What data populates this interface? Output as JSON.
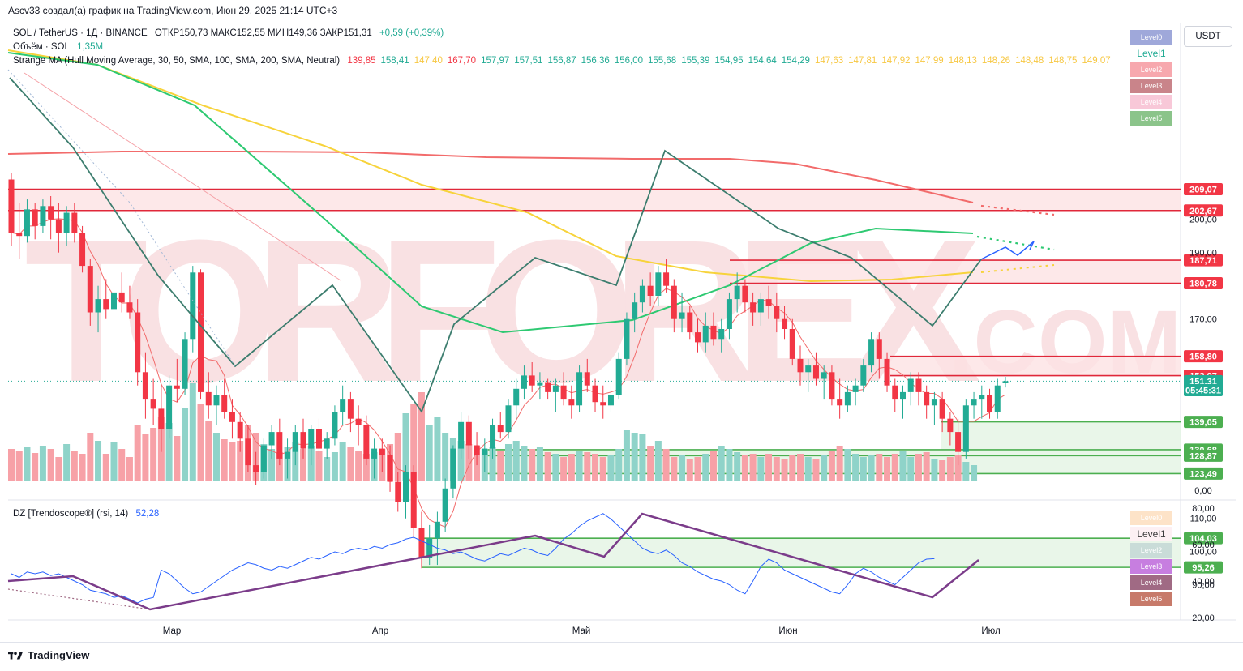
{
  "caption": "Ascv33 создал(а) график на TradingView.com, Июн 29, 2025 21:14 UTC+3",
  "legend": {
    "symbol": "SOL / TetherUS · 1Д · BINANCE",
    "ohlc": "ОТКР150,73  МАКС152,55  МИН149,36  ЗАКР151,31",
    "change": "+0,59 (+0,39%)",
    "volume_label": "Объём · SOL",
    "volume_value": "1,35M",
    "ma_label": "Strange MA (Hull Moving Average, 30, 50, SMA, 100, SMA, 200, SMA, Neutral)",
    "ma_values": [
      {
        "v": "139,85",
        "c": "#f23645"
      },
      {
        "v": "158,41",
        "c": "#22ab94"
      },
      {
        "v": "147,40",
        "c": "#f7c844"
      },
      {
        "v": "167,70",
        "c": "#f23645"
      },
      {
        "v": "157,97",
        "c": "#22ab94"
      },
      {
        "v": "157,51",
        "c": "#22ab94"
      },
      {
        "v": "156,87",
        "c": "#22ab94"
      },
      {
        "v": "156,36",
        "c": "#22ab94"
      },
      {
        "v": "156,00",
        "c": "#22ab94"
      },
      {
        "v": "155,68",
        "c": "#22ab94"
      },
      {
        "v": "155,39",
        "c": "#22ab94"
      },
      {
        "v": "154,95",
        "c": "#22ab94"
      },
      {
        "v": "154,64",
        "c": "#22ab94"
      },
      {
        "v": "154,29",
        "c": "#22ab94"
      },
      {
        "v": "147,63",
        "c": "#f7c844"
      },
      {
        "v": "147,81",
        "c": "#f7c844"
      },
      {
        "v": "147,92",
        "c": "#f7c844"
      },
      {
        "v": "147,99",
        "c": "#f7c844"
      },
      {
        "v": "148,13",
        "c": "#f7c844"
      },
      {
        "v": "148,26",
        "c": "#f7c844"
      },
      {
        "v": "148,48",
        "c": "#f7c844"
      },
      {
        "v": "148,75",
        "c": "#f7c844"
      },
      {
        "v": "149,07",
        "c": "#f7c844"
      }
    ],
    "rsi_label": "DZ [Trendoscope®] (rsi, 14)",
    "rsi_value": "52,28"
  },
  "currency_button": "USDT",
  "levels_main": [
    {
      "label": "Level0",
      "bg": "#9fa8da",
      "fg": "#ffffff"
    },
    {
      "label": "Level1",
      "bg": "#ffffff",
      "fg": "#22ab94"
    },
    {
      "label": "Level2",
      "bg": "#f7a8ae",
      "fg": "#ffffff"
    },
    {
      "label": "Level3",
      "bg": "#c9848a",
      "fg": "#ffffff"
    },
    {
      "label": "Level4",
      "bg": "#f8c8d8",
      "fg": "#ffffff"
    },
    {
      "label": "Level5",
      "bg": "#8bc48a",
      "fg": "#ffffff"
    }
  ],
  "levels_rsi": [
    {
      "label": "Level0",
      "bg": "#fde3c8",
      "fg": "#ffffff"
    },
    {
      "label": "Level1",
      "bg": "#fdf0f3",
      "fg": "#3b3b3b"
    },
    {
      "label": "Level2",
      "bg": "#c9dcd8",
      "fg": "#ffffff"
    },
    {
      "label": "Level3",
      "bg": "#c77ee0",
      "fg": "#ffffff"
    },
    {
      "label": "Level4",
      "bg": "#a06a84",
      "fg": "#ffffff"
    },
    {
      "label": "Level5",
      "bg": "#c77a6a",
      "fg": "#ffffff"
    }
  ],
  "watermark": {
    "main": "TORFOREX",
    "suffix": ".COM"
  },
  "tradingview_label": "TradingView",
  "colors": {
    "up": "#22ab94",
    "down": "#f23645",
    "vol_up": "#8fd3c9",
    "vol_down": "#f7a1a7",
    "ma100": "#2ec972",
    "ma200": "#f26b6b",
    "ma_y": "#f7d33b",
    "hull": "#f23645",
    "zone_red": "#fde2e4",
    "zone_green": "#e3f4e3",
    "line_red": "#e0283a",
    "line_green": "#4caf50",
    "price_tag": "#22ab94"
  },
  "chart_data": {
    "type": "candlestick",
    "title": "SOL / TetherUS · 1Д · BINANCE",
    "price_axis": {
      "range": [
        0,
        215
      ],
      "ticks": [
        "200,00",
        "190,00",
        "170,00",
        "110,00",
        "100,00",
        "90,00",
        "0,00"
      ]
    },
    "time_axis": [
      "Мар",
      "Апр",
      "Май",
      "Июн",
      "Июл"
    ],
    "price_labels": [
      {
        "text": "209,07",
        "color": "#f23645",
        "value": 209.07
      },
      {
        "text": "202,67",
        "color": "#f23645",
        "value": 202.67
      },
      {
        "text": "187,71",
        "color": "#f23645",
        "value": 187.71
      },
      {
        "text": "180,78",
        "color": "#f23645",
        "value": 180.78
      },
      {
        "text": "158,80",
        "color": "#f23645",
        "value": 158.8
      },
      {
        "text": "152,97",
        "color": "#f23645",
        "value": 152.97
      },
      {
        "text": "151,31",
        "color": "#22ab94",
        "value": 151.31
      },
      {
        "text": "05:45:31",
        "color": "#22ab94",
        "value": 148.6
      },
      {
        "text": "139,05",
        "color": "#4caf50",
        "value": 139.05
      },
      {
        "text": "130,68",
        "color": "#4caf50",
        "value": 130.68
      },
      {
        "text": "128,87",
        "color": "#4caf50",
        "value": 128.87
      },
      {
        "text": "123,49",
        "color": "#4caf50",
        "value": 123.49
      },
      {
        "text": "104,03",
        "color": "#4caf50",
        "value": 104.03
      },
      {
        "text": "95,26",
        "color": "#4caf50",
        "value": 95.26
      }
    ],
    "rsi_axis": {
      "ticks": [
        "80,00",
        "60,00",
        "40,00",
        "20,00"
      ],
      "range": [
        20,
        80
      ]
    },
    "candles": [
      [
        212,
        214,
        192,
        196
      ],
      [
        196,
        205,
        188,
        195
      ],
      [
        195,
        206,
        193,
        203
      ],
      [
        203,
        205,
        194,
        198
      ],
      [
        198,
        206,
        196,
        204
      ],
      [
        204,
        207,
        194,
        200
      ],
      [
        200,
        205,
        190,
        196
      ],
      [
        196,
        204,
        192,
        202
      ],
      [
        202,
        205,
        193,
        196
      ],
      [
        196,
        198,
        184,
        186
      ],
      [
        186,
        188,
        168,
        172
      ],
      [
        172,
        180,
        166,
        176
      ],
      [
        176,
        182,
        170,
        173
      ],
      [
        173,
        180,
        168,
        178
      ],
      [
        178,
        184,
        172,
        175
      ],
      [
        175,
        180,
        170,
        172
      ],
      [
        172,
        176,
        150,
        154
      ],
      [
        154,
        160,
        140,
        146
      ],
      [
        146,
        152,
        138,
        143
      ],
      [
        143,
        150,
        130,
        137
      ],
      [
        137,
        153,
        134,
        150
      ],
      [
        150,
        158,
        145,
        149
      ],
      [
        149,
        166,
        147,
        164
      ],
      [
        164,
        186,
        160,
        184
      ],
      [
        184,
        185,
        146,
        148
      ],
      [
        148,
        154,
        140,
        144
      ],
      [
        144,
        150,
        138,
        147
      ],
      [
        147,
        152,
        140,
        142
      ],
      [
        142,
        146,
        134,
        139
      ],
      [
        139,
        142,
        130,
        134
      ],
      [
        134,
        138,
        124,
        126
      ],
      [
        126,
        130,
        120,
        124
      ],
      [
        124,
        134,
        122,
        132
      ],
      [
        132,
        138,
        128,
        136
      ],
      [
        136,
        140,
        126,
        128
      ],
      [
        128,
        134,
        122,
        130
      ],
      [
        130,
        138,
        126,
        136
      ],
      [
        136,
        140,
        128,
        131
      ],
      [
        131,
        138,
        126,
        137
      ],
      [
        137,
        140,
        128,
        131
      ],
      [
        131,
        136,
        128,
        134
      ],
      [
        134,
        144,
        132,
        142
      ],
      [
        142,
        150,
        138,
        146
      ],
      [
        146,
        148,
        136,
        140
      ],
      [
        140,
        144,
        132,
        138
      ],
      [
        138,
        141,
        126,
        128
      ],
      [
        128,
        134,
        122,
        131
      ],
      [
        131,
        134,
        124,
        129
      ],
      [
        129,
        132,
        118,
        121
      ],
      [
        121,
        124,
        112,
        115
      ],
      [
        115,
        126,
        110,
        124
      ],
      [
        124,
        126,
        104,
        107
      ],
      [
        107,
        112,
        95,
        98
      ],
      [
        98,
        108,
        96,
        104
      ],
      [
        104,
        112,
        96,
        109
      ],
      [
        109,
        122,
        106,
        119
      ],
      [
        119,
        132,
        116,
        131
      ],
      [
        131,
        142,
        128,
        139
      ],
      [
        139,
        141,
        128,
        132
      ],
      [
        132,
        136,
        126,
        129
      ],
      [
        129,
        134,
        124,
        131
      ],
      [
        131,
        140,
        128,
        138
      ],
      [
        138,
        142,
        134,
        136
      ],
      [
        136,
        146,
        134,
        144
      ],
      [
        144,
        152,
        140,
        149
      ],
      [
        149,
        156,
        146,
        153
      ],
      [
        153,
        157,
        148,
        150
      ],
      [
        150,
        154,
        146,
        151
      ],
      [
        151,
        152,
        146,
        148
      ],
      [
        148,
        152,
        142,
        150
      ],
      [
        150,
        154,
        144,
        146
      ],
      [
        146,
        150,
        140,
        144
      ],
      [
        144,
        156,
        142,
        154
      ],
      [
        154,
        158,
        148,
        150
      ],
      [
        150,
        152,
        142,
        145
      ],
      [
        145,
        150,
        140,
        144
      ],
      [
        144,
        150,
        142,
        147
      ],
      [
        147,
        160,
        146,
        158
      ],
      [
        158,
        172,
        156,
        170
      ],
      [
        170,
        178,
        166,
        175
      ],
      [
        175,
        182,
        172,
        180
      ],
      [
        180,
        184,
        174,
        177
      ],
      [
        177,
        186,
        174,
        184
      ],
      [
        184,
        188,
        178,
        180
      ],
      [
        180,
        182,
        166,
        170
      ],
      [
        170,
        178,
        166,
        172
      ],
      [
        172,
        174,
        164,
        166
      ],
      [
        166,
        170,
        160,
        163
      ],
      [
        163,
        172,
        160,
        168
      ],
      [
        168,
        172,
        162,
        164
      ],
      [
        164,
        170,
        160,
        167
      ],
      [
        167,
        178,
        164,
        176
      ],
      [
        176,
        184,
        172,
        180
      ],
      [
        180,
        182,
        172,
        175
      ],
      [
        175,
        178,
        168,
        172
      ],
      [
        172,
        178,
        168,
        176
      ],
      [
        176,
        180,
        170,
        174
      ],
      [
        174,
        178,
        166,
        170
      ],
      [
        170,
        174,
        164,
        167
      ],
      [
        167,
        170,
        156,
        158
      ],
      [
        158,
        162,
        150,
        154
      ],
      [
        154,
        158,
        148,
        156
      ],
      [
        156,
        160,
        150,
        152
      ],
      [
        152,
        156,
        146,
        154
      ],
      [
        154,
        156,
        144,
        146
      ],
      [
        146,
        152,
        140,
        144
      ],
      [
        144,
        150,
        142,
        148
      ],
      [
        148,
        152,
        144,
        150
      ],
      [
        150,
        158,
        148,
        156
      ],
      [
        156,
        166,
        154,
        164
      ],
      [
        164,
        166,
        152,
        158
      ],
      [
        158,
        160,
        148,
        150
      ],
      [
        150,
        152,
        142,
        146
      ],
      [
        146,
        150,
        140,
        148
      ],
      [
        148,
        154,
        144,
        152
      ],
      [
        152,
        154,
        144,
        148
      ],
      [
        148,
        150,
        140,
        144
      ],
      [
        144,
        148,
        138,
        146
      ],
      [
        146,
        148,
        136,
        140
      ],
      [
        140,
        142,
        132,
        136
      ],
      [
        136,
        140,
        126,
        130
      ],
      [
        130,
        146,
        128,
        144
      ],
      [
        144,
        148,
        140,
        146
      ],
      [
        146,
        150,
        140,
        147
      ],
      [
        147,
        149,
        140,
        142
      ],
      [
        142,
        152,
        140,
        150
      ],
      [
        150.7,
        152.6,
        149.4,
        151.3
      ]
    ],
    "rsi": [
      44,
      42,
      45,
      44,
      45,
      43,
      44,
      42,
      40,
      38,
      35,
      34,
      33,
      31,
      32,
      30,
      28,
      30,
      31,
      46,
      44,
      40,
      36,
      33,
      34,
      37,
      40,
      43,
      46,
      48,
      50,
      49,
      47,
      46,
      48,
      47,
      49,
      51,
      53,
      52,
      54,
      56,
      55,
      57,
      58,
      57,
      59,
      58,
      60,
      61,
      63,
      64,
      62,
      60,
      58,
      57,
      55,
      56,
      54,
      52,
      51,
      53,
      55,
      54,
      56,
      58,
      57,
      55,
      54,
      58,
      63,
      66,
      70,
      73,
      75,
      77,
      74,
      70,
      66,
      62,
      58,
      56,
      55,
      57,
      54,
      50,
      48,
      45,
      43,
      41,
      40,
      38,
      35,
      33,
      40,
      48,
      52,
      50,
      46,
      44,
      42,
      40,
      38,
      36,
      34,
      33,
      38,
      44,
      47,
      45,
      42,
      40,
      38,
      42,
      46,
      50,
      52,
      52.28
    ]
  }
}
